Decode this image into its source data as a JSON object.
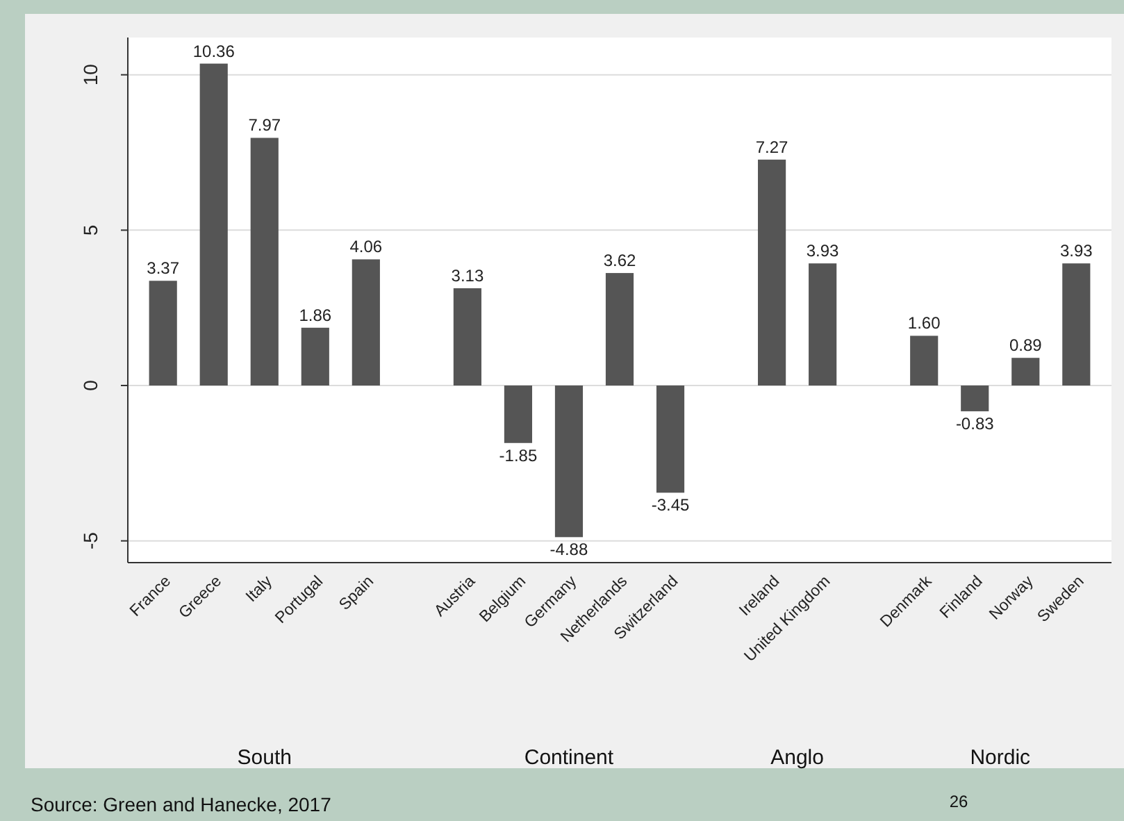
{
  "chart_data": {
    "type": "bar",
    "categories": [
      "France",
      "Greece",
      "Italy",
      "Portugal",
      "Spain",
      null,
      "Austria",
      "Belgium",
      "Germany",
      "Netherlands",
      "Switzerland",
      null,
      "Ireland",
      "United Kingdom",
      null,
      "Denmark",
      "Finland",
      "Norway",
      "Sweden"
    ],
    "values": [
      3.37,
      10.36,
      7.97,
      1.86,
      4.06,
      null,
      3.13,
      -1.85,
      -4.88,
      3.62,
      -3.45,
      null,
      7.27,
      3.93,
      null,
      1.6,
      -0.83,
      0.89,
      3.93
    ],
    "value_labels": [
      "3.37",
      "10.36",
      "7.97",
      "1.86",
      "4.06",
      null,
      "3.13",
      "-1.85",
      "-4.88",
      "3.62",
      "-3.45",
      null,
      "7.27",
      "3.93",
      null,
      "1.60",
      "-0.83",
      "0.89",
      "3.93"
    ],
    "color": "#555555",
    "ylim": [
      -5.7,
      11.2
    ],
    "yticks": [
      -5,
      0,
      5,
      10
    ],
    "grid": "y",
    "annotations": [
      "South",
      "Continent",
      "Anglo",
      "Nordic",
      "Source: Green and Hanecke, 2017",
      "26"
    ]
  }
}
